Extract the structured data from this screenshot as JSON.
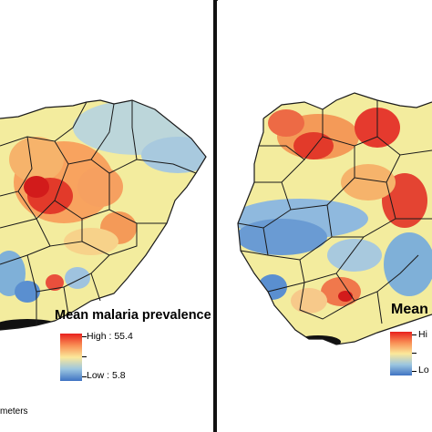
{
  "figure": {
    "left_panel": {
      "legend": {
        "title": "Mean malaria prevalence",
        "high_label": "High : 55.4",
        "low_label": "Low : 5.8",
        "colors": [
          "#e8201d",
          "#f98f55",
          "#fbe89a",
          "#9cc6e0",
          "#3f73c3"
        ]
      },
      "scale_unit": "meters",
      "map": {
        "hotspot_colors": {
          "high": "#e23a2a",
          "mid": "#f8a35f",
          "low": "#5a8fd0"
        }
      }
    },
    "right_panel": {
      "legend": {
        "title": "Mean l",
        "high_label": "Hi",
        "low_label": "Lo",
        "colors": [
          "#e8201d",
          "#f98f55",
          "#fbe89a",
          "#9cc6e0",
          "#3f73c3"
        ]
      }
    }
  }
}
